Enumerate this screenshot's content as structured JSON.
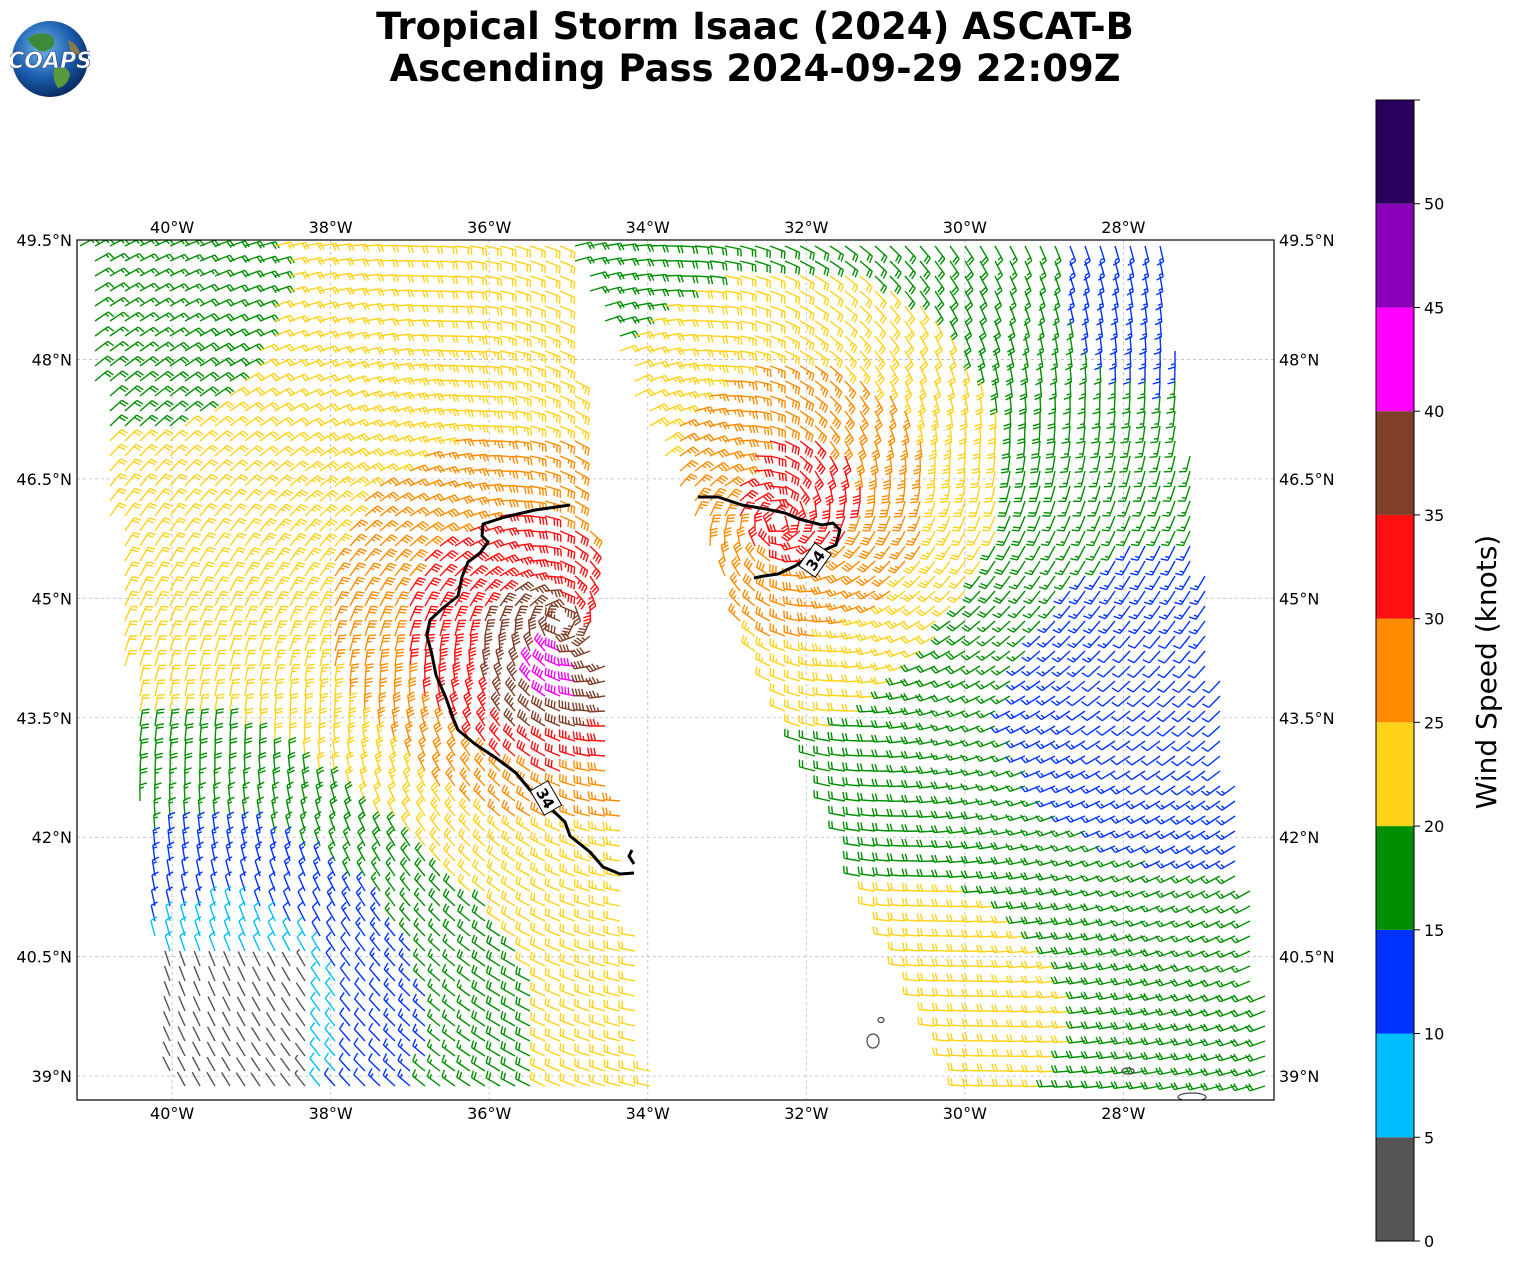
{
  "title": {
    "line1": "Tropical Storm Isaac (2024) ASCAT-B",
    "line2": "Ascending Pass 2024-09-29 22:09Z"
  },
  "logo": {
    "text": "COAPS",
    "icon": "globe-logo-icon"
  },
  "map": {
    "lon_range": [
      -41.2,
      -26.1
    ],
    "lat_range": [
      38.7,
      49.5
    ],
    "lon_ticks": [
      "40°W",
      "38°W",
      "36°W",
      "34°W",
      "32°W",
      "30°W",
      "28°W"
    ],
    "lat_ticks": [
      "49.5°N",
      "48°N",
      "46.5°N",
      "45°N",
      "43.5°N",
      "42°N",
      "40.5°N",
      "39°N"
    ],
    "gridlines": true,
    "contour_label": "34",
    "contour_color": "#000000"
  },
  "colorbar": {
    "label": "Wind Speed (knots)",
    "ticks": [
      "0",
      "5",
      "10",
      "15",
      "20",
      "25",
      "30",
      "35",
      "40",
      "45",
      "50"
    ],
    "bins": [
      {
        "min": 0,
        "max": 5,
        "color": "#555555"
      },
      {
        "min": 5,
        "max": 10,
        "color": "#00bfff"
      },
      {
        "min": 10,
        "max": 15,
        "color": "#0033ff"
      },
      {
        "min": 15,
        "max": 20,
        "color": "#008f00"
      },
      {
        "min": 20,
        "max": 25,
        "color": "#ffd21a"
      },
      {
        "min": 25,
        "max": 30,
        "color": "#ff8c00"
      },
      {
        "min": 30,
        "max": 35,
        "color": "#ff1010"
      },
      {
        "min": 35,
        "max": 40,
        "color": "#7f3f28"
      },
      {
        "min": 40,
        "max": 45,
        "color": "#ff00ff"
      },
      {
        "min": 45,
        "max": 50,
        "color": "#8a00b8"
      },
      {
        "min": 50,
        "max": 55,
        "color": "#2a005f"
      }
    ]
  }
}
